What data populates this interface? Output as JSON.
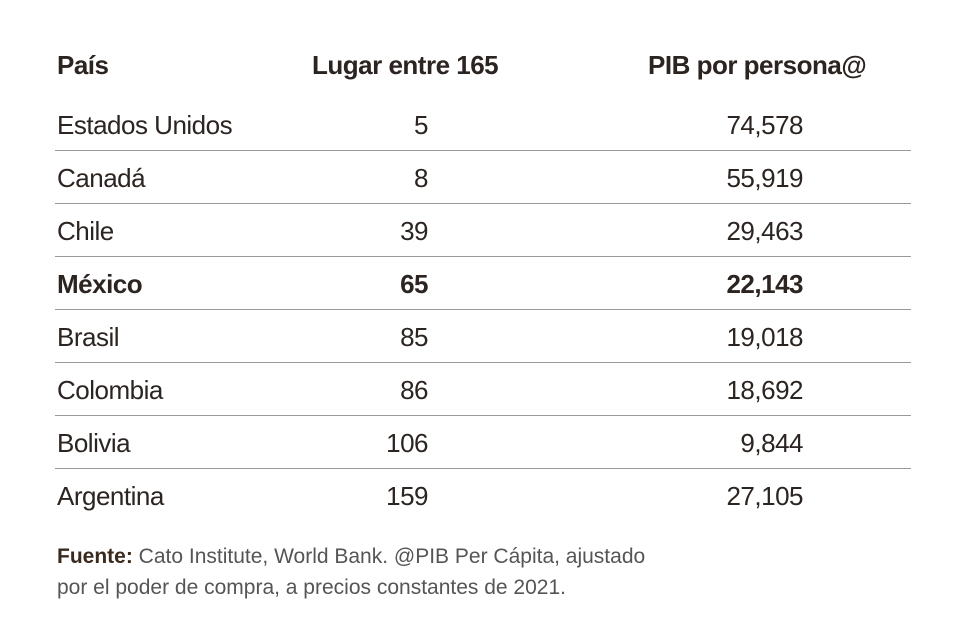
{
  "table": {
    "headers": [
      "País",
      "Lugar entre 165",
      "PIB por persona@"
    ],
    "rows": [
      {
        "cells": [
          "Estados Unidos",
          "5",
          "74,578"
        ]
      },
      {
        "cells": [
          "Canadá",
          "8",
          "55,919"
        ]
      },
      {
        "cells": [
          "Chile",
          "39",
          "29,463"
        ]
      },
      {
        "cells": [
          "México",
          "65",
          "22,143"
        ],
        "bold": true
      },
      {
        "cells": [
          "Brasil",
          "85",
          "19,018"
        ]
      },
      {
        "cells": [
          "Colombia",
          "86",
          "18,692"
        ]
      },
      {
        "cells": [
          "Bolivia",
          "106",
          "9,844"
        ]
      },
      {
        "cells": [
          "Argentina",
          "159",
          "27,105"
        ]
      }
    ]
  },
  "note": {
    "label": "Fuente:",
    "lines": [
      "Cato Institute, World Bank. @PIB Per Cápita, ajustado",
      "por el poder de compra, a precios constantes de 2021."
    ]
  }
}
